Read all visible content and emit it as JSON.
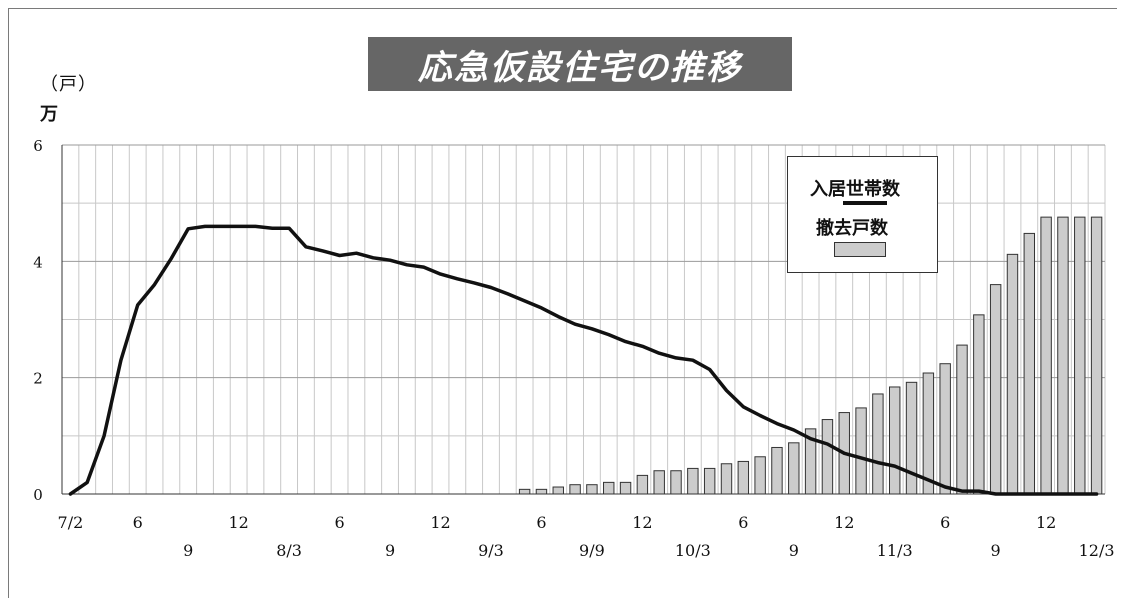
{
  "title": "応急仮設住宅の推移",
  "unit_top": "（戸）",
  "unit_bottom": "万",
  "legend": {
    "resident_label": "入居世帯数",
    "removed_label": "撤去戸数"
  },
  "colors": {
    "line": "#111111",
    "bar_fill": "#cccccc",
    "bar_stroke": "#333333",
    "grid": "#c8c8c8",
    "title_bg": "#666666"
  },
  "chart_data": {
    "type": "bar",
    "title": "応急仮設住宅の推移",
    "ylabel": "万（戸）",
    "ylim": [
      0,
      6
    ],
    "yticks": [
      0,
      2,
      4,
      6
    ],
    "grid": true,
    "legend_position": "top-right",
    "x_tick_labels": [
      {
        "i": 0,
        "label": "7/2",
        "row": 1
      },
      {
        "i": 4,
        "label": "6",
        "row": 1
      },
      {
        "i": 7,
        "label": "9",
        "row": 2
      },
      {
        "i": 10,
        "label": "12",
        "row": 1
      },
      {
        "i": 13,
        "label": "8/3",
        "row": 2
      },
      {
        "i": 16,
        "label": "6",
        "row": 1
      },
      {
        "i": 19,
        "label": "9",
        "row": 2
      },
      {
        "i": 22,
        "label": "12",
        "row": 1
      },
      {
        "i": 25,
        "label": "9/3",
        "row": 2
      },
      {
        "i": 28,
        "label": "6",
        "row": 1
      },
      {
        "i": 31,
        "label": "9/9",
        "row": 2
      },
      {
        "i": 34,
        "label": "12",
        "row": 1
      },
      {
        "i": 37,
        "label": "10/3",
        "row": 2
      },
      {
        "i": 40,
        "label": "6",
        "row": 1
      },
      {
        "i": 43,
        "label": "9",
        "row": 2
      },
      {
        "i": 46,
        "label": "12",
        "row": 1
      },
      {
        "i": 49,
        "label": "11/3",
        "row": 2
      },
      {
        "i": 52,
        "label": "6",
        "row": 1
      },
      {
        "i": 55,
        "label": "9",
        "row": 2
      },
      {
        "i": 58,
        "label": "12",
        "row": 1
      },
      {
        "i": 61,
        "label": "12/3",
        "row": 2
      }
    ],
    "series": [
      {
        "name": "撤去戸数",
        "kind": "bar",
        "values": [
          0,
          0,
          0,
          0,
          0,
          0,
          0,
          0,
          0,
          0,
          0,
          0,
          0,
          0,
          0,
          0,
          0,
          0,
          0,
          0,
          0,
          0,
          0,
          0,
          0,
          0,
          0,
          0.08,
          0.08,
          0.12,
          0.16,
          0.16,
          0.2,
          0.2,
          0.32,
          0.4,
          0.4,
          0.44,
          0.44,
          0.52,
          0.56,
          0.64,
          0.8,
          0.88,
          1.12,
          1.28,
          1.4,
          1.48,
          1.72,
          1.84,
          1.92,
          2.08,
          2.24,
          2.56,
          3.08,
          3.6,
          4.12,
          4.48,
          4.76,
          4.76,
          4.76,
          4.76
        ]
      },
      {
        "name": "入居世帯数",
        "kind": "line",
        "values": [
          0,
          0.2,
          1.0,
          2.3,
          3.25,
          3.6,
          4.05,
          4.56,
          4.6,
          4.6,
          4.6,
          4.6,
          4.57,
          4.57,
          4.25,
          4.18,
          4.1,
          4.14,
          4.06,
          4.02,
          3.94,
          3.9,
          3.78,
          3.7,
          3.63,
          3.55,
          3.44,
          3.32,
          3.2,
          3.05,
          2.92,
          2.84,
          2.74,
          2.62,
          2.54,
          2.42,
          2.34,
          2.3,
          2.14,
          1.78,
          1.5,
          1.35,
          1.21,
          1.1,
          0.95,
          0.86,
          0.7,
          0.62,
          0.54,
          0.48,
          0.36,
          0.24,
          0.12,
          0.05,
          0.05,
          0,
          0,
          0,
          0,
          0,
          0,
          0
        ]
      }
    ]
  }
}
